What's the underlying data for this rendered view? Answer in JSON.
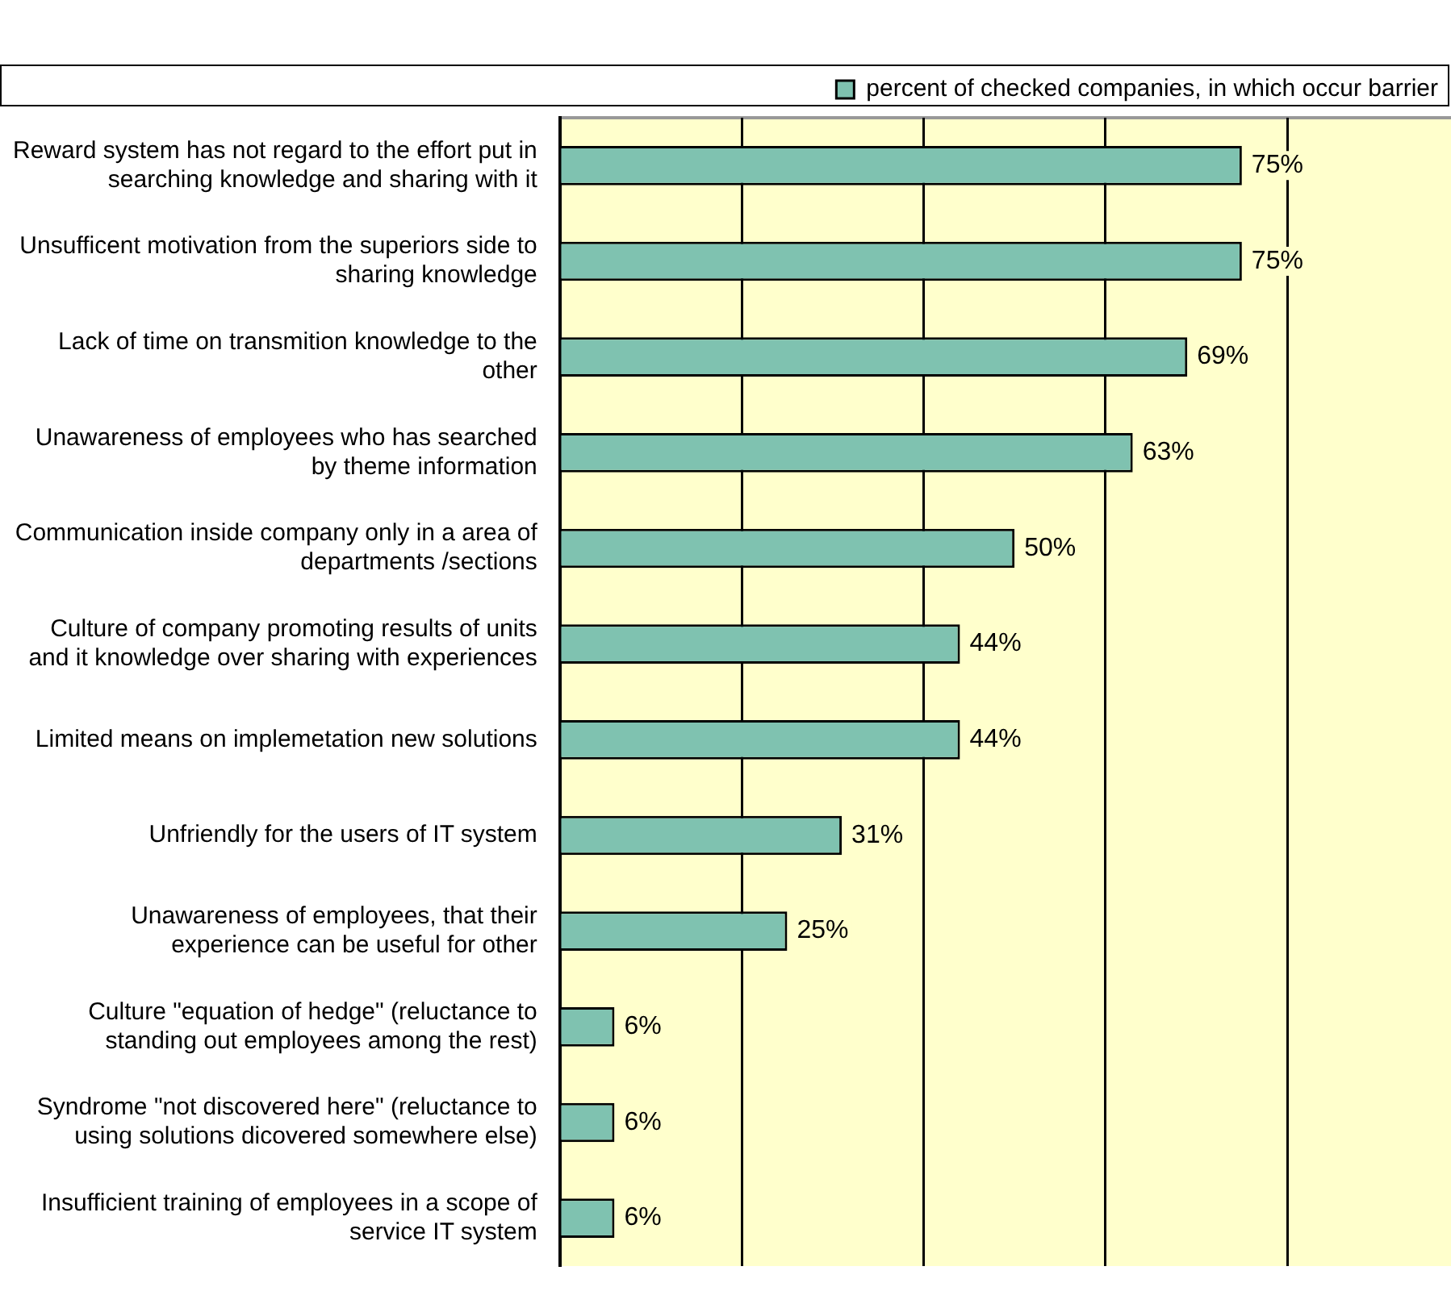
{
  "chart_data": {
    "type": "bar",
    "orientation": "horizontal",
    "categories": [
      "Reward system has not regard to the effort put in\nsearching knowledge and sharing with it",
      "Unsufficent motivation from the superiors side to\nsharing knowledge",
      "Lack of time on transmition knowledge to the\nother",
      "Unawareness of employees who has searched\nby theme information",
      "Communication inside company only in a area of\ndepartments /sections",
      "Culture of company promoting results of units\nand it knowledge over sharing with experiences",
      "Limited means on implemetation new solutions",
      "Unfriendly for the users of IT system",
      "Unawareness of employees, that their\nexperience can be useful for other",
      "Culture \"equation of hedge\" (reluctance to\nstanding out employees among the rest)",
      "Syndrome \"not discovered here\" (reluctance to\nusing solutions dicovered somewhere else)",
      "Insufficient training of employees in a scope of\nservice IT system"
    ],
    "series": [
      {
        "name": "percent of checked companies, in which occur barrier",
        "color": "#7fc2b0",
        "values": [
          75,
          75,
          69,
          63,
          50,
          44,
          44,
          31,
          25,
          6,
          6,
          6
        ],
        "value_labels": [
          "75%",
          "75%",
          "69%",
          "63%",
          "50%",
          "44%",
          "44%",
          "31%",
          "25%",
          "6%",
          "6%",
          "6%"
        ]
      }
    ],
    "xlim": [
      0,
      98
    ],
    "xticks": [
      {
        "value": 0,
        "label": null
      },
      {
        "value": 20,
        "label": null
      },
      {
        "value": 40,
        "label": null
      },
      {
        "value": 60,
        "label": null
      },
      {
        "value": 80,
        "label": null
      }
    ],
    "tick_labels": "y",
    "grid": "x",
    "legend": "top right"
  }
}
